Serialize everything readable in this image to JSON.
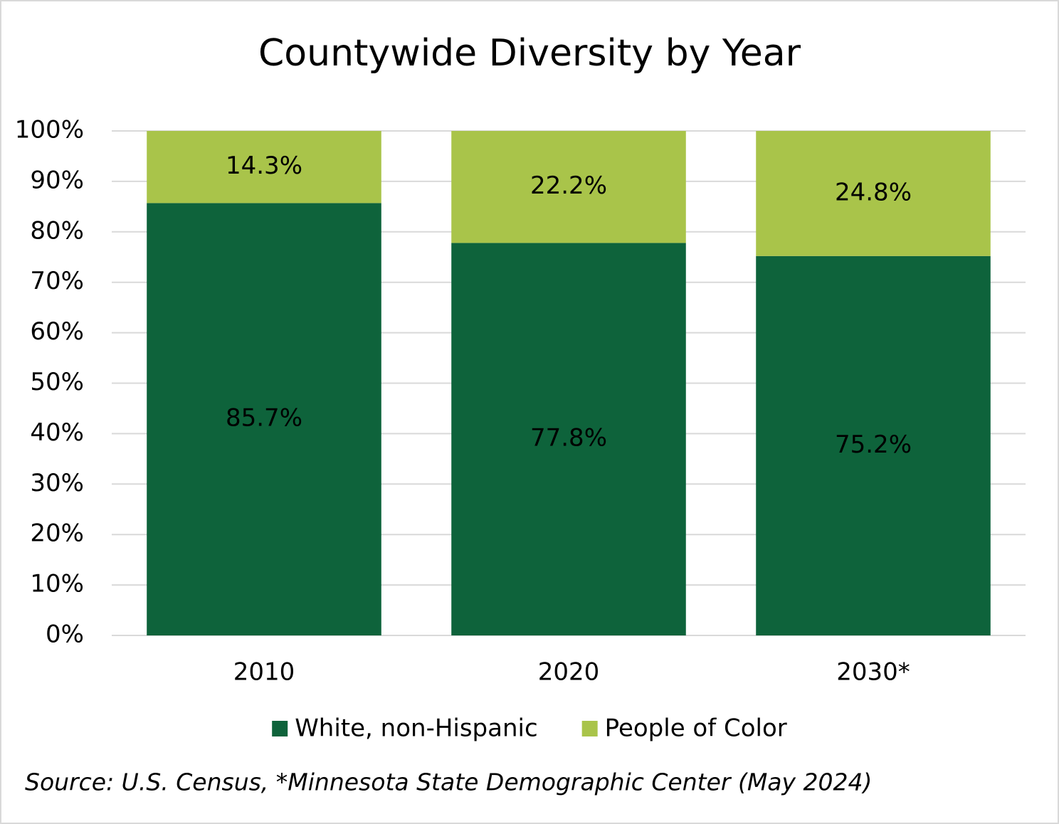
{
  "chart_data": {
    "type": "stacked_bar",
    "title": "Countywide Diversity by Year",
    "categories": [
      "2010",
      "2020",
      "2030*"
    ],
    "series": [
      {
        "name": "White, non-Hispanic",
        "color": "#0e633b",
        "values": [
          85.7,
          77.8,
          75.2
        ],
        "value_labels": [
          "85.7%",
          "77.8%",
          "75.2%"
        ],
        "label_color": "#ffffff"
      },
      {
        "name": "People of Color",
        "color": "#a9c44a",
        "values": [
          14.3,
          22.2,
          24.8
        ],
        "value_labels": [
          "14.3%",
          "22.2%",
          "24.8%"
        ],
        "label_color": "#000000"
      }
    ],
    "ylim": [
      0,
      100
    ],
    "yticks": [
      {
        "value": 0,
        "label": "0%"
      },
      {
        "value": 10,
        "label": "10%"
      },
      {
        "value": 20,
        "label": "20%"
      },
      {
        "value": 30,
        "label": "30%"
      },
      {
        "value": 40,
        "label": "40%"
      },
      {
        "value": 50,
        "label": "50%"
      },
      {
        "value": 60,
        "label": "60%"
      },
      {
        "value": 70,
        "label": "70%"
      },
      {
        "value": 80,
        "label": "80%"
      },
      {
        "value": 90,
        "label": "90%"
      },
      {
        "value": 100,
        "label": "100%"
      }
    ],
    "grid": true,
    "legend": "bottom",
    "source": "Source: U.S. Census, *Minnesota State Demographic Center (May 2024)"
  }
}
